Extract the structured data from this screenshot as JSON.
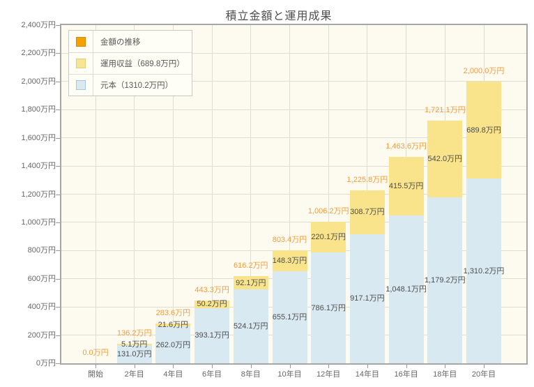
{
  "chart_data": {
    "type": "bar",
    "stacked": true,
    "title": "積立金額と運用成果",
    "categories": [
      "開始",
      "2年目",
      "4年目",
      "6年目",
      "8年目",
      "10年目",
      "12年目",
      "14年目",
      "16年目",
      "18年目",
      "20年目"
    ],
    "series": [
      {
        "name": "元本",
        "color": "#d9e9f2",
        "values": [
          0,
          131.0,
          262.0,
          393.1,
          524.1,
          655.1,
          786.1,
          917.1,
          1048.1,
          1179.2,
          1310.2
        ],
        "value_labels": [
          "",
          "131.0万円",
          "262.0万円",
          "393.1万円",
          "524.1万円",
          "655.1万円",
          "786.1万円",
          "917.1万円",
          "1,048.1万円",
          "1,179.2万円",
          "1,310.2万円"
        ]
      },
      {
        "name": "運用収益",
        "color": "#f9e48b",
        "values": [
          0,
          5.1,
          21.6,
          50.2,
          92.1,
          148.3,
          220.1,
          308.7,
          415.5,
          542.0,
          689.8
        ],
        "value_labels": [
          "",
          "5.1万円",
          "21.6万円",
          "50.2万円",
          "92.1万円",
          "148.3万円",
          "220.1万円",
          "308.7万円",
          "415.5万円",
          "542.0万円",
          "689.8万円"
        ]
      }
    ],
    "totals": {
      "name": "金額の推移",
      "values": [
        0.0,
        136.2,
        283.6,
        443.3,
        616.2,
        803.4,
        1006.2,
        1225.8,
        1463.6,
        1721.1,
        2000.0
      ],
      "value_labels": [
        "0.0万円",
        "136.2万円",
        "283.6万円",
        "443.3万円",
        "616.2万円",
        "803.4万円",
        "1,006.2万円",
        "1,225.8万円",
        "1,463.6万円",
        "1,721.1万円",
        "2,000.0万円"
      ]
    },
    "y_axis": {
      "min": 0,
      "max": 2400,
      "step": 200,
      "unit": "万円",
      "tick_labels": [
        "0万円",
        "200万円",
        "400万円",
        "600万円",
        "800万円",
        "1,000万円",
        "1,200万円",
        "1,400万円",
        "1,600万円",
        "1,800万円",
        "2,000万円",
        "2,200万円",
        "2,400万円"
      ]
    },
    "grid": true,
    "legend_position": "top-left"
  },
  "legend": {
    "items": [
      {
        "label": "金額の推移",
        "swatch_fill": "#f5a100",
        "swatch_border": "#d18c00"
      },
      {
        "label": "運用収益（689.8万円）",
        "swatch_fill": "#f7e597",
        "swatch_border": "#e3cf74"
      },
      {
        "label": "元本（1310.2万円）",
        "swatch_fill": "#d9e9f2",
        "swatch_border": "#aac7d9"
      }
    ]
  },
  "colors": {
    "plot_bg": "#fdfaef",
    "grid_line": "#e2ddd1",
    "plot_border": "#a6a6a6",
    "axis_text": "#666666",
    "value_text": "#4d4d4d",
    "total_text": "#ef9e3d",
    "tick_mark": "#999999"
  }
}
